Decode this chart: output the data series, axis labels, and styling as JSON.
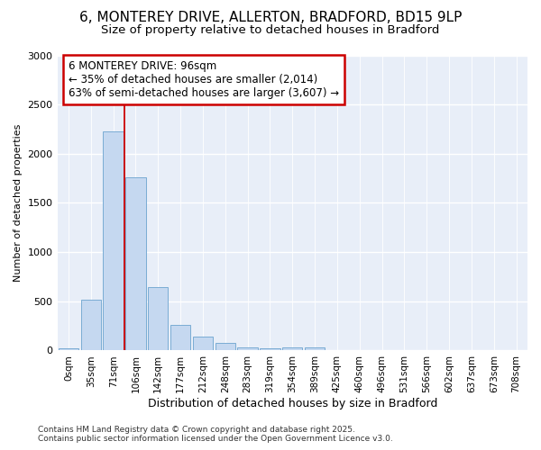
{
  "title1": "6, MONTEREY DRIVE, ALLERTON, BRADFORD, BD15 9LP",
  "title2": "Size of property relative to detached houses in Bradford",
  "xlabel": "Distribution of detached houses by size in Bradford",
  "ylabel": "Number of detached properties",
  "categories": [
    "0sqm",
    "35sqm",
    "71sqm",
    "106sqm",
    "142sqm",
    "177sqm",
    "212sqm",
    "248sqm",
    "283sqm",
    "319sqm",
    "354sqm",
    "389sqm",
    "425sqm",
    "460sqm",
    "496sqm",
    "531sqm",
    "566sqm",
    "602sqm",
    "637sqm",
    "673sqm",
    "708sqm"
  ],
  "values": [
    20,
    520,
    2230,
    1760,
    640,
    260,
    140,
    75,
    30,
    25,
    30,
    30,
    5,
    5,
    5,
    0,
    0,
    0,
    0,
    0,
    0
  ],
  "bar_color": "#c5d8f0",
  "bar_edge_color": "#7aacd4",
  "vline_x": 2.5,
  "vline_color": "#cc0000",
  "annotation_text": "6 MONTEREY DRIVE: 96sqm\n← 35% of detached houses are smaller (2,014)\n63% of semi-detached houses are larger (3,607) →",
  "annotation_box_color": "#ffffff",
  "annotation_box_edge": "#cc0000",
  "ylim": [
    0,
    3000
  ],
  "yticks": [
    0,
    500,
    1000,
    1500,
    2000,
    2500,
    3000
  ],
  "bg_color": "#ffffff",
  "footer": "Contains HM Land Registry data © Crown copyright and database right 2025.\nContains public sector information licensed under the Open Government Licence v3.0.",
  "title_fontsize": 11,
  "subtitle_fontsize": 9.5,
  "annotation_fontsize": 8.5
}
